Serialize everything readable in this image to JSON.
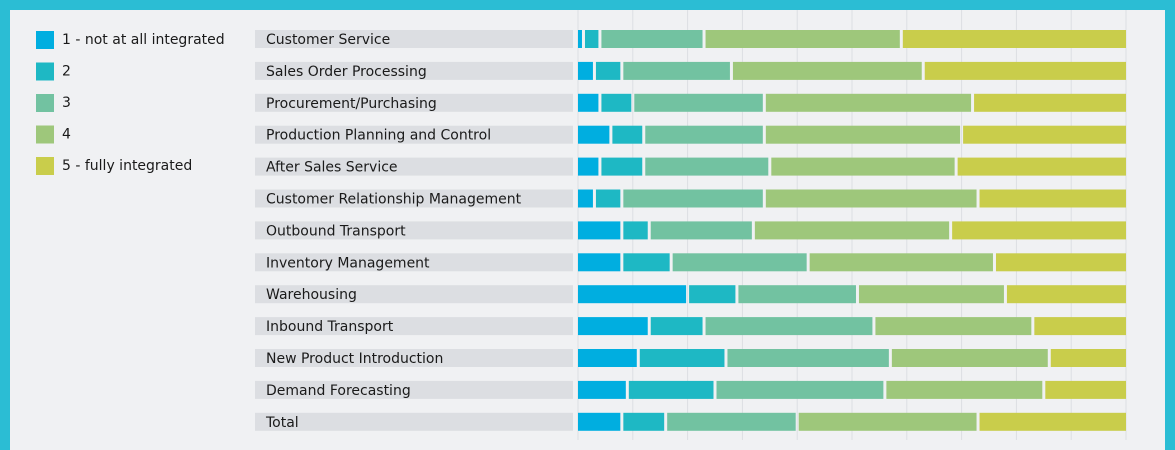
{
  "chart_data": {
    "type": "stacked-barh",
    "categories": [
      "Customer Service",
      "Sales Order Processing",
      "Procurement/Purchasing",
      "Production Planning and Control",
      "After Sales Service",
      "Customer Relationship Management",
      "Outbound Transport",
      "Inventory Management",
      "Warehousing",
      "Inbound Transport",
      "New Product Introduction",
      "Demand Forecasting",
      "Total"
    ],
    "series": [
      {
        "name": "1 - not at all integrated",
        "color": "#00aee0",
        "values": [
          1,
          3,
          4,
          6,
          4,
          3,
          8,
          8,
          20,
          13,
          11,
          9,
          8
        ]
      },
      {
        "name": "2",
        "color": "#1eb8c4",
        "values": [
          3,
          5,
          6,
          6,
          8,
          5,
          5,
          9,
          9,
          10,
          16,
          16,
          8
        ]
      },
      {
        "name": "3",
        "color": "#72c2a1",
        "values": [
          19,
          20,
          24,
          22,
          23,
          26,
          19,
          25,
          22,
          31,
          30,
          31,
          24
        ]
      },
      {
        "name": "4",
        "color": "#9ec77b",
        "values": [
          36,
          35,
          38,
          36,
          34,
          39,
          36,
          34,
          27,
          29,
          29,
          29,
          33
        ]
      },
      {
        "name": "5 - fully integrated",
        "color": "#c9cd4b",
        "values": [
          41,
          37,
          28,
          30,
          31,
          27,
          32,
          24,
          22,
          17,
          14,
          15,
          27
        ]
      }
    ],
    "xlim": [
      0,
      100
    ],
    "xticks": [
      0,
      10,
      20,
      30,
      40,
      50,
      60,
      70,
      80,
      90,
      100
    ],
    "grid": true
  }
}
